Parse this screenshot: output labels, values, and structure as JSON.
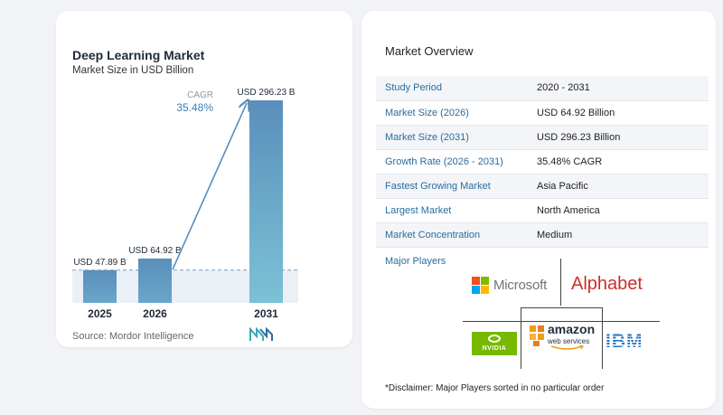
{
  "chart_data": {
    "type": "bar",
    "title": "Deep Learning Market",
    "subtitle": "Market Size in USD Billion",
    "categories": [
      "2025",
      "2026",
      "2031"
    ],
    "values": [
      47.89,
      64.92,
      296.23
    ],
    "value_labels": [
      "USD 47.89 B",
      "USD 64.92 B",
      "USD 296.23 B"
    ],
    "annotation": {
      "label": "CAGR",
      "value": "35.48%"
    },
    "colors": [
      "#5b93bd",
      "#5b93bd",
      "#6aaecd"
    ],
    "reference_line": 47.89,
    "xlabel": "",
    "ylabel": "",
    "grid": false,
    "ylim": [
      0,
      296.23
    ]
  },
  "source": "Source:  Mordor Intelligence",
  "overview": {
    "title": "Market Overview",
    "rows": [
      {
        "key": "Study Period",
        "value": "2020 - 2031"
      },
      {
        "key": "Market Size (2026)",
        "value": "USD 64.92 Billion"
      },
      {
        "key": "Market Size (2031)",
        "value": "USD 296.23 Billion"
      },
      {
        "key": "Growth Rate (2026 - 2031)",
        "value": "35.48% CAGR"
      },
      {
        "key": "Fastest Growing Market",
        "value": "Asia Pacific"
      },
      {
        "key": "Largest Market",
        "value": "North America"
      },
      {
        "key": "Market Concentration",
        "value": "Medium"
      }
    ]
  },
  "players": {
    "title": "Major Players",
    "microsoft": "Microsoft",
    "alphabet": "Alphabet",
    "nvidia": "NVIDIA",
    "amazon": "amazon",
    "aws": "web services",
    "ibm": "IBM"
  },
  "disclaimer": "*Disclaimer: Major Players sorted in no particular order",
  "colors": {
    "bar": "#5b93bd",
    "bar_highlight": "#6aaecd",
    "accent": "#2b6c9e",
    "microsoft": [
      "#f25022",
      "#7fba00",
      "#00a4ef",
      "#ffb900"
    ],
    "alphabet": "#c9302c",
    "nvidia": "#76b900",
    "aws_orange": "#f39c12",
    "ibm": "#1f70c1"
  }
}
